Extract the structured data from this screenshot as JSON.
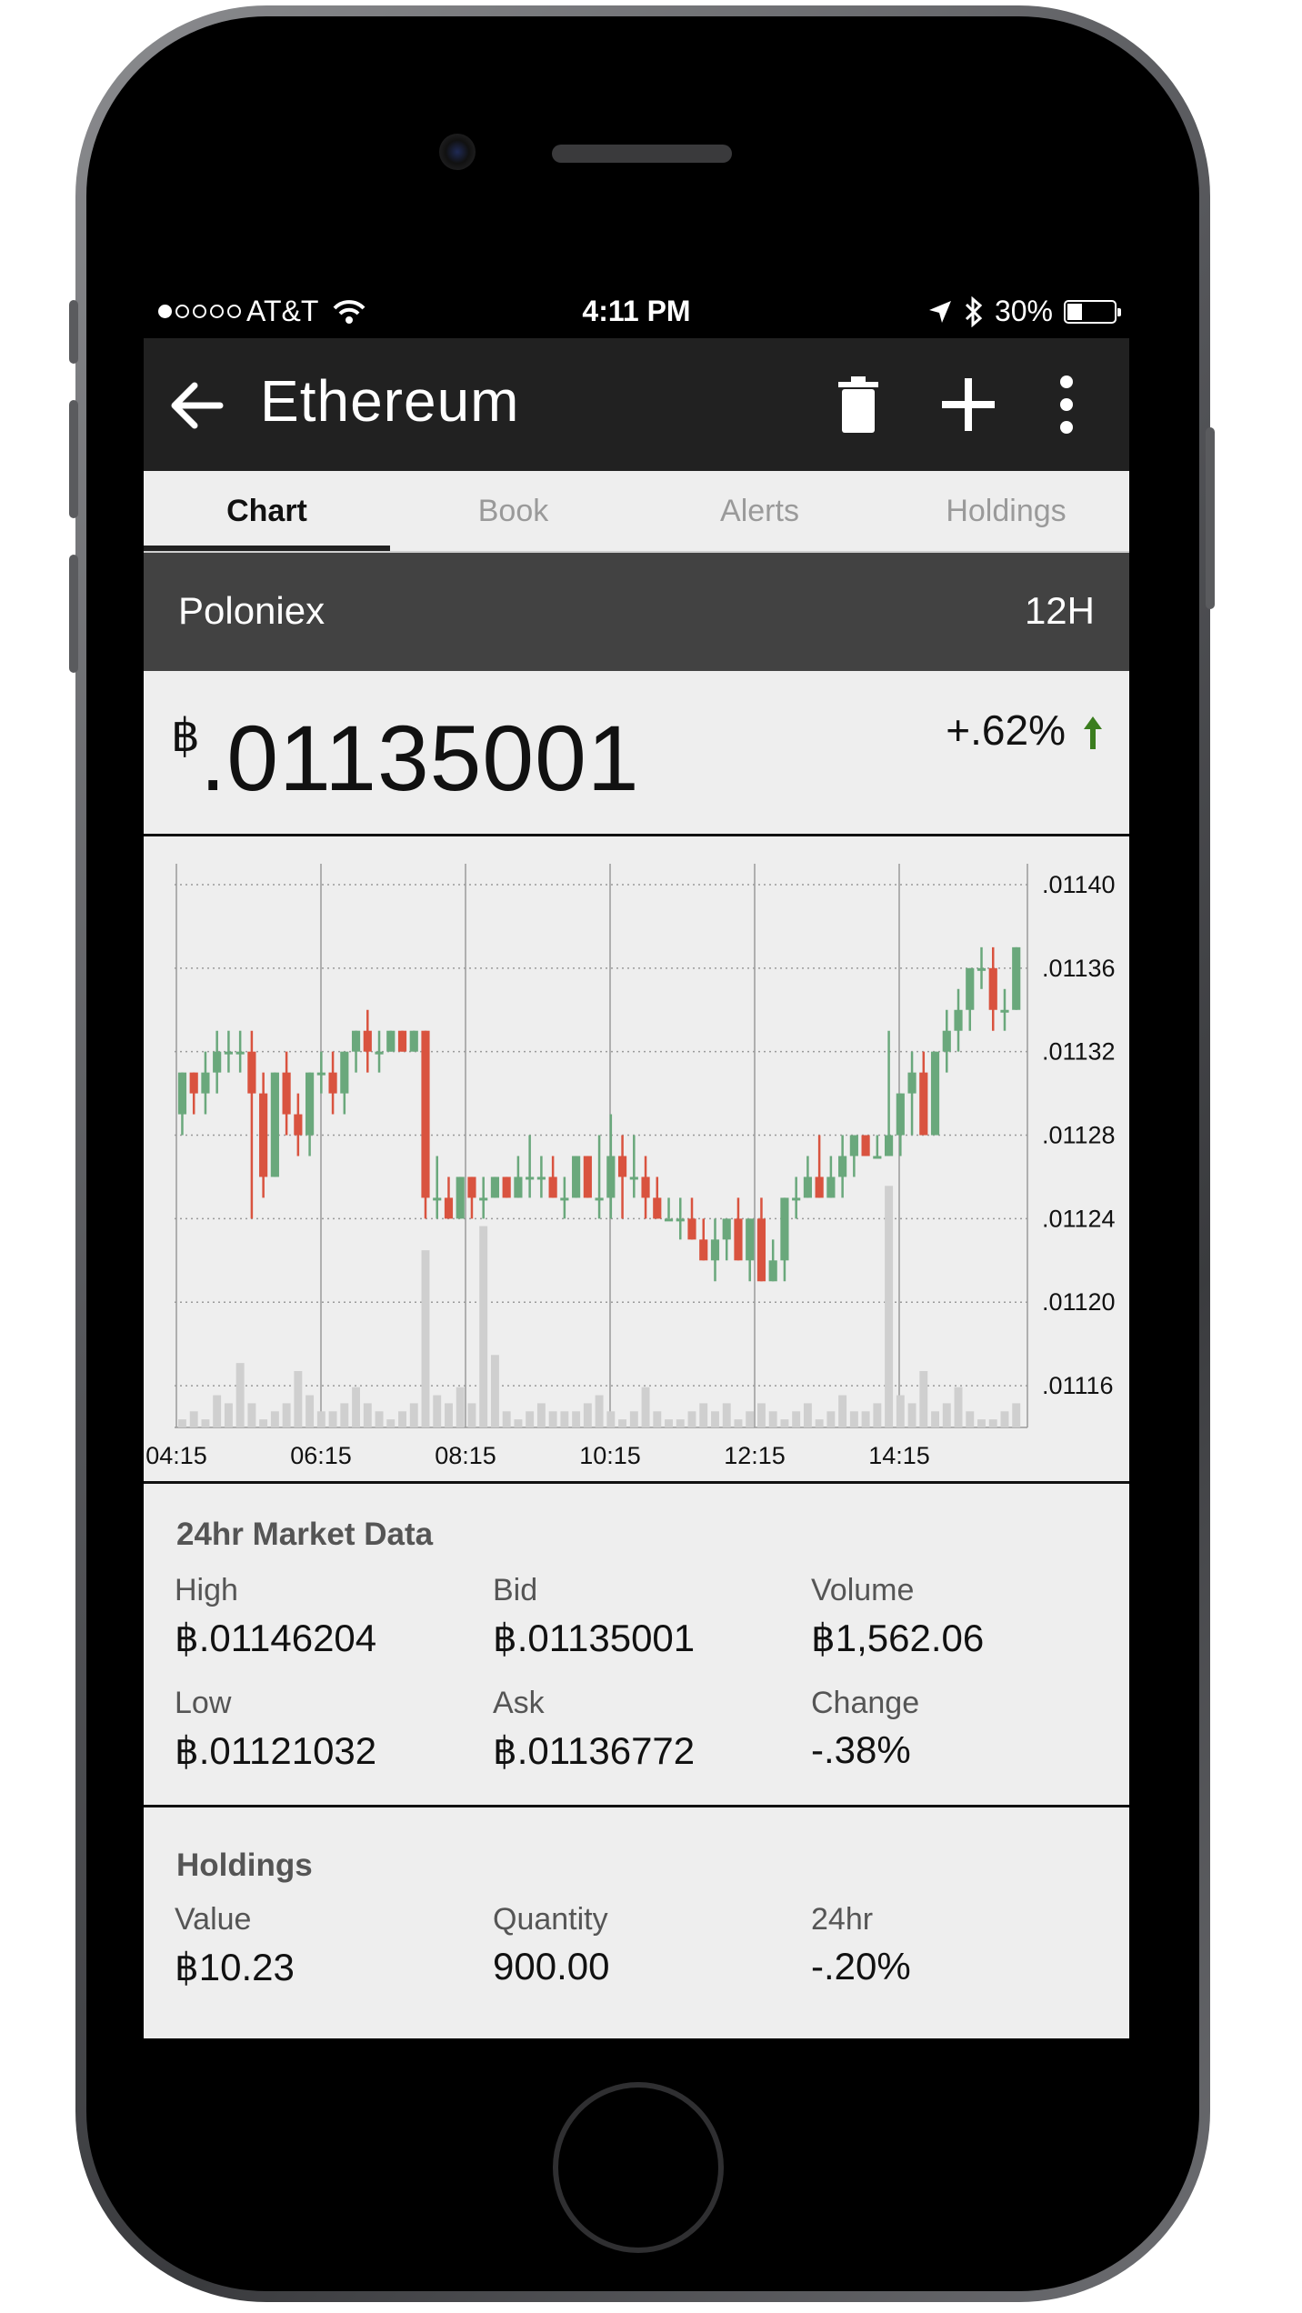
{
  "status_bar": {
    "carrier": "AT&T",
    "time": "4:11 PM",
    "battery": "30%"
  },
  "app_bar": {
    "title": "Ethereum",
    "icons": [
      "back-arrow-icon",
      "trash-icon",
      "plus-icon",
      "more-vert-icon"
    ]
  },
  "tabs": [
    {
      "label": "Chart",
      "active": true
    },
    {
      "label": "Book",
      "active": false
    },
    {
      "label": "Alerts",
      "active": false
    },
    {
      "label": "Holdings",
      "active": false
    }
  ],
  "exchange": {
    "name": "Poloniex",
    "period": "12H"
  },
  "price": {
    "symbol": "฿",
    "value": ".01135001",
    "change": "+.62%",
    "change_color": "#3b7d1e"
  },
  "colors": {
    "up": "#6aa87c",
    "down": "#d9533f",
    "volume": "#cfcfcf",
    "app_bar": "#212121",
    "exchange_bar": "#424242"
  },
  "chart_data": {
    "type": "candlestick",
    "x_ticks": [
      "04:15",
      "06:15",
      "08:15",
      "10:15",
      "12:15",
      "14:15"
    ],
    "y_ticks": [
      ".01140",
      ".01136",
      ".01132",
      ".01128",
      ".01124",
      ".01120",
      ".01116"
    ],
    "ylim": [
      0.01114,
      0.01141
    ],
    "grid": true,
    "candles": [
      [
        0.01129,
        0.01131,
        0.01128,
        0.01131
      ],
      [
        0.01131,
        0.01131,
        0.01129,
        0.0113
      ],
      [
        0.0113,
        0.01132,
        0.01129,
        0.01131
      ],
      [
        0.01131,
        0.01133,
        0.0113,
        0.01132
      ],
      [
        0.01132,
        0.01133,
        0.01131,
        0.01132
      ],
      [
        0.01132,
        0.01133,
        0.01131,
        0.01132
      ],
      [
        0.01132,
        0.01133,
        0.01124,
        0.0113
      ],
      [
        0.0113,
        0.01131,
        0.01125,
        0.01126
      ],
      [
        0.01126,
        0.01131,
        0.01126,
        0.01131
      ],
      [
        0.01131,
        0.01132,
        0.01128,
        0.01129
      ],
      [
        0.01129,
        0.0113,
        0.01127,
        0.01128
      ],
      [
        0.01128,
        0.01131,
        0.01127,
        0.01131
      ],
      [
        0.01131,
        0.01132,
        0.0113,
        0.01131
      ],
      [
        0.01131,
        0.01132,
        0.01129,
        0.0113
      ],
      [
        0.0113,
        0.01132,
        0.01129,
        0.01132
      ],
      [
        0.01132,
        0.01133,
        0.01131,
        0.01133
      ],
      [
        0.01133,
        0.01134,
        0.01131,
        0.01132
      ],
      [
        0.01132,
        0.01133,
        0.01131,
        0.01132
      ],
      [
        0.01132,
        0.01133,
        0.01132,
        0.01133
      ],
      [
        0.01133,
        0.01133,
        0.01132,
        0.01132
      ],
      [
        0.01132,
        0.01133,
        0.01132,
        0.01133
      ],
      [
        0.01133,
        0.01133,
        0.01124,
        0.01125
      ],
      [
        0.01125,
        0.01127,
        0.01124,
        0.01125
      ],
      [
        0.01125,
        0.01126,
        0.01124,
        0.01124
      ],
      [
        0.01124,
        0.01126,
        0.01124,
        0.01126
      ],
      [
        0.01126,
        0.01126,
        0.01124,
        0.01125
      ],
      [
        0.01125,
        0.01126,
        0.01124,
        0.01125
      ],
      [
        0.01125,
        0.01126,
        0.01125,
        0.01126
      ],
      [
        0.01126,
        0.01126,
        0.01125,
        0.01125
      ],
      [
        0.01125,
        0.01127,
        0.01125,
        0.01126
      ],
      [
        0.01126,
        0.01128,
        0.01125,
        0.01126
      ],
      [
        0.01126,
        0.01127,
        0.01125,
        0.01126
      ],
      [
        0.01126,
        0.01127,
        0.01125,
        0.01125
      ],
      [
        0.01125,
        0.01126,
        0.01124,
        0.01125
      ],
      [
        0.01125,
        0.01127,
        0.01125,
        0.01127
      ],
      [
        0.01127,
        0.01127,
        0.01125,
        0.01125
      ],
      [
        0.01125,
        0.01128,
        0.01124,
        0.01125
      ],
      [
        0.01125,
        0.01129,
        0.01124,
        0.01127
      ],
      [
        0.01127,
        0.01128,
        0.01124,
        0.01126
      ],
      [
        0.01126,
        0.01128,
        0.01125,
        0.01126
      ],
      [
        0.01126,
        0.01127,
        0.01124,
        0.01125
      ],
      [
        0.01125,
        0.01126,
        0.01124,
        0.01124
      ],
      [
        0.01124,
        0.01125,
        0.01124,
        0.01124
      ],
      [
        0.01124,
        0.01125,
        0.01123,
        0.01124
      ],
      [
        0.01124,
        0.01125,
        0.01123,
        0.01123
      ],
      [
        0.01123,
        0.01124,
        0.01122,
        0.01122
      ],
      [
        0.01122,
        0.01124,
        0.01121,
        0.01123
      ],
      [
        0.01123,
        0.01124,
        0.01122,
        0.01124
      ],
      [
        0.01124,
        0.01125,
        0.01122,
        0.01122
      ],
      [
        0.01122,
        0.01124,
        0.01121,
        0.01124
      ],
      [
        0.01124,
        0.01125,
        0.01121,
        0.01121
      ],
      [
        0.01121,
        0.01123,
        0.01121,
        0.01122
      ],
      [
        0.01122,
        0.01125,
        0.01121,
        0.01125
      ],
      [
        0.01125,
        0.01126,
        0.01124,
        0.01125
      ],
      [
        0.01125,
        0.01127,
        0.01125,
        0.01126
      ],
      [
        0.01126,
        0.01128,
        0.01125,
        0.01125
      ],
      [
        0.01125,
        0.01127,
        0.01125,
        0.01126
      ],
      [
        0.01126,
        0.01128,
        0.01125,
        0.01127
      ],
      [
        0.01127,
        0.01128,
        0.01126,
        0.01128
      ],
      [
        0.01128,
        0.01128,
        0.01127,
        0.01127
      ],
      [
        0.01127,
        0.01128,
        0.01127,
        0.01127
      ],
      [
        0.01127,
        0.01133,
        0.01127,
        0.01128
      ],
      [
        0.01128,
        0.0113,
        0.01127,
        0.0113
      ],
      [
        0.0113,
        0.01132,
        0.01128,
        0.01131
      ],
      [
        0.01131,
        0.01132,
        0.01128,
        0.01128
      ],
      [
        0.01128,
        0.01132,
        0.01128,
        0.01132
      ],
      [
        0.01132,
        0.01134,
        0.01131,
        0.01133
      ],
      [
        0.01133,
        0.01135,
        0.01132,
        0.01134
      ],
      [
        0.01134,
        0.01136,
        0.01133,
        0.01136
      ],
      [
        0.01136,
        0.01137,
        0.01135,
        0.01136
      ],
      [
        0.01136,
        0.01137,
        0.01133,
        0.01134
      ],
      [
        0.01134,
        0.01135,
        0.01133,
        0.01134
      ],
      [
        0.01134,
        0.01137,
        0.01134,
        0.01137
      ]
    ],
    "volumes": [
      1,
      2,
      1,
      4,
      3,
      8,
      3,
      1,
      2,
      3,
      7,
      4,
      2,
      2,
      3,
      5,
      3,
      2,
      1,
      2,
      3,
      22,
      4,
      3,
      5,
      3,
      25,
      9,
      2,
      1,
      2,
      3,
      2,
      2,
      2,
      3,
      4,
      2,
      1,
      2,
      5,
      2,
      1,
      1,
      2,
      3,
      2,
      3,
      1,
      2,
      3,
      2,
      1,
      2,
      3,
      1,
      2,
      4,
      2,
      2,
      3,
      30,
      4,
      3,
      7,
      2,
      3,
      5,
      2,
      1,
      1,
      2,
      3
    ]
  },
  "market": {
    "title": "24hr Market Data",
    "high_label": "High",
    "high_value": "฿.01146204",
    "bid_label": "Bid",
    "bid_value": "฿.01135001",
    "volume_label": "Volume",
    "volume_value": "฿1,562.06",
    "low_label": "Low",
    "low_value": "฿.01121032",
    "ask_label": "Ask",
    "ask_value": "฿.01136772",
    "change_label": "Change",
    "change_value": "-.38%"
  },
  "holdings": {
    "title": "Holdings",
    "value_label": "Value",
    "value_value": "฿10.23",
    "quantity_label": "Quantity",
    "quantity_value": "900.00",
    "change_label": "24hr",
    "change_value": "-.20%"
  }
}
